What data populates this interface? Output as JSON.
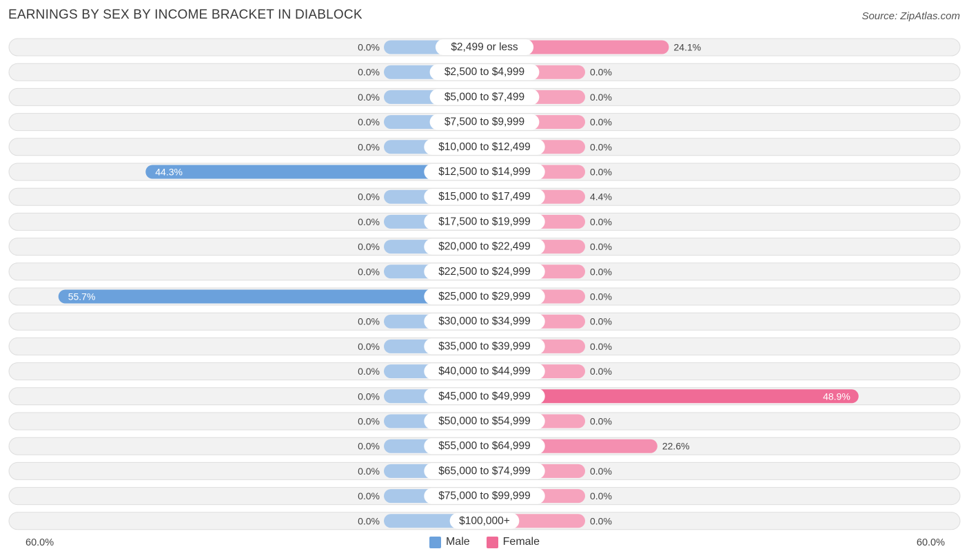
{
  "title": "EARNINGS BY SEX BY INCOME BRACKET IN DIABLOCK",
  "source": "Source: ZipAtlas.com",
  "axis": {
    "left_label": "60.0%",
    "right_label": "60.0%"
  },
  "legend": {
    "male_label": "Male",
    "female_label": "Female"
  },
  "colors": {
    "male": "#6ba1dc",
    "male_light": "#a9c8ea",
    "female": "#f06b96",
    "female_light": "#f6a3bd",
    "row_bg": "#f2f2f2",
    "row_border": "#dddddd"
  },
  "chart_data": {
    "type": "bar",
    "orientation": "horizontal-diverging",
    "title": "EARNINGS BY SEX BY INCOME BRACKET IN DIABLOCK",
    "xlim": [
      -60,
      60
    ],
    "categories": [
      "$2,499 or less",
      "$2,500 to $4,999",
      "$5,000 to $7,499",
      "$7,500 to $9,999",
      "$10,000 to $12,499",
      "$12,500 to $14,999",
      "$15,000 to $17,499",
      "$17,500 to $19,999",
      "$20,000 to $22,499",
      "$22,500 to $24,999",
      "$25,000 to $29,999",
      "$30,000 to $34,999",
      "$35,000 to $39,999",
      "$40,000 to $44,999",
      "$45,000 to $49,999",
      "$50,000 to $54,999",
      "$55,000 to $64,999",
      "$65,000 to $74,999",
      "$75,000 to $99,999",
      "$100,000+"
    ],
    "series": [
      {
        "name": "Male",
        "values": [
          0.0,
          0.0,
          0.0,
          0.0,
          0.0,
          44.3,
          0.0,
          0.0,
          0.0,
          0.0,
          55.7,
          0.0,
          0.0,
          0.0,
          0.0,
          0.0,
          0.0,
          0.0,
          0.0,
          0.0
        ],
        "labels": [
          "0.0%",
          "0.0%",
          "0.0%",
          "0.0%",
          "0.0%",
          "44.3%",
          "0.0%",
          "0.0%",
          "0.0%",
          "0.0%",
          "55.7%",
          "0.0%",
          "0.0%",
          "0.0%",
          "0.0%",
          "0.0%",
          "0.0%",
          "0.0%",
          "0.0%",
          "0.0%"
        ]
      },
      {
        "name": "Female",
        "values": [
          24.1,
          0.0,
          0.0,
          0.0,
          0.0,
          0.0,
          4.4,
          0.0,
          0.0,
          0.0,
          0.0,
          0.0,
          0.0,
          0.0,
          48.9,
          0.0,
          22.6,
          0.0,
          0.0,
          0.0
        ],
        "labels": [
          "24.1%",
          "0.0%",
          "0.0%",
          "0.0%",
          "0.0%",
          "0.0%",
          "4.4%",
          "0.0%",
          "0.0%",
          "0.0%",
          "0.0%",
          "0.0%",
          "0.0%",
          "0.0%",
          "48.9%",
          "0.0%",
          "22.6%",
          "0.0%",
          "0.0%",
          "0.0%"
        ]
      }
    ],
    "legend_position": "bottom-center",
    "grid": false
  }
}
